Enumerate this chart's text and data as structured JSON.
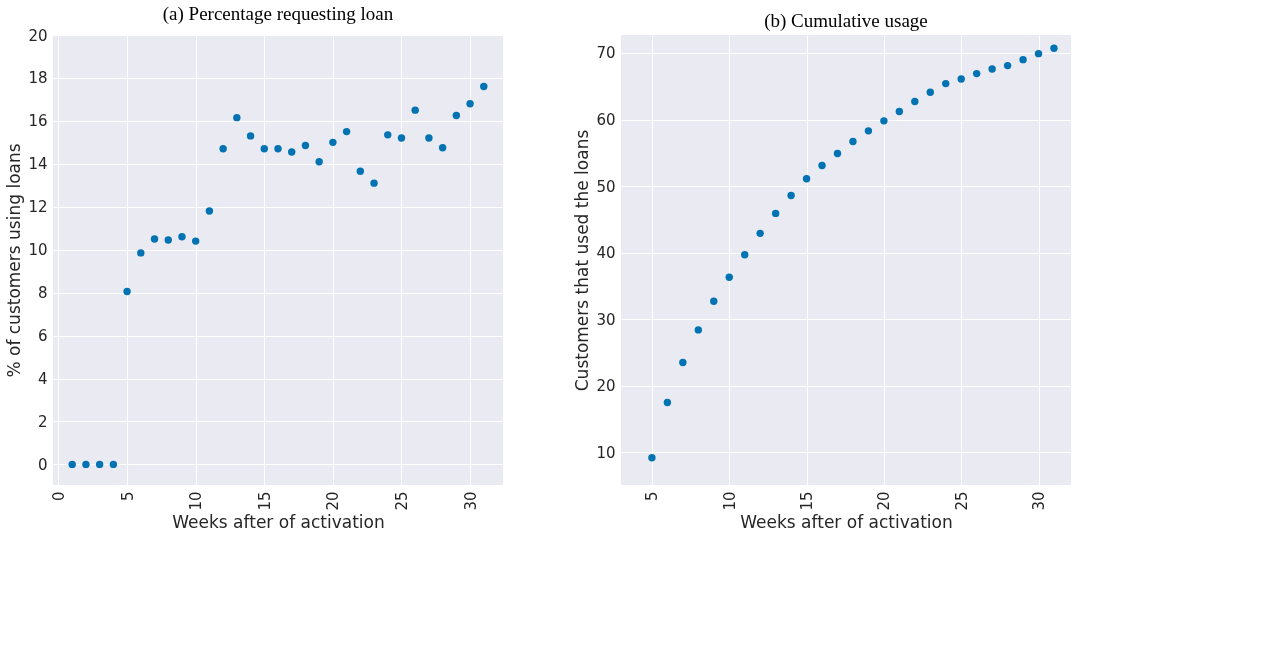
{
  "chart_data": [
    {
      "type": "scatter",
      "title": "(a) Percentage requesting loan",
      "xlabel": "Weeks after of activation",
      "ylabel": "% of customers using loans",
      "x": [
        1,
        2,
        3,
        4,
        5,
        6,
        7,
        8,
        9,
        10,
        11,
        12,
        13,
        14,
        15,
        16,
        17,
        18,
        19,
        20,
        21,
        22,
        23,
        24,
        25,
        26,
        27,
        28,
        29,
        30,
        31
      ],
      "series": [
        {
          "color": "#0173b2",
          "values": [
            0,
            0,
            0,
            0,
            8.05,
            9.85,
            10.5,
            10.45,
            10.6,
            10.4,
            11.8,
            14.7,
            16.15,
            15.3,
            14.7,
            14.7,
            14.55,
            14.85,
            14.1,
            15.0,
            15.5,
            13.65,
            13.1,
            15.35,
            15.2,
            16.5,
            15.2,
            14.75,
            16.25,
            16.8,
            17.6
          ]
        }
      ],
      "xlim": [
        -0.4,
        32.4
      ],
      "ylim": [
        -0.96,
        20
      ],
      "xticks": [
        0,
        5,
        10,
        15,
        20,
        25,
        30
      ],
      "yticks": [
        0,
        2,
        4,
        6,
        8,
        10,
        12,
        14,
        16,
        18,
        20
      ],
      "grid": true,
      "marker": "circle"
    },
    {
      "type": "scatter",
      "title": "(b) Cumulative usage",
      "xlabel": "Weeks after of activation",
      "ylabel": "Customers that used the loans",
      "x": [
        5,
        6,
        7,
        8,
        9,
        10,
        11,
        12,
        13,
        14,
        15,
        16,
        17,
        18,
        19,
        20,
        21,
        22,
        23,
        24,
        25,
        26,
        27,
        28,
        29,
        30,
        31
      ],
      "series": [
        {
          "color": "#0173b2",
          "values": [
            9.2,
            17.5,
            23.5,
            28.4,
            32.7,
            36.3,
            39.7,
            42.9,
            45.9,
            48.6,
            51.1,
            53.1,
            54.9,
            56.7,
            58.3,
            59.8,
            61.2,
            62.7,
            64.1,
            65.4,
            66.1,
            66.9,
            67.6,
            68.1,
            69.0,
            69.9,
            70.7
          ]
        }
      ],
      "xlim": [
        3.0,
        32.1
      ],
      "ylim": [
        5.1,
        72.7
      ],
      "xticks": [
        5,
        10,
        15,
        20,
        25,
        30
      ],
      "yticks": [
        10,
        20,
        30,
        40,
        50,
        60,
        70
      ],
      "grid": true,
      "marker": "circle"
    }
  ]
}
